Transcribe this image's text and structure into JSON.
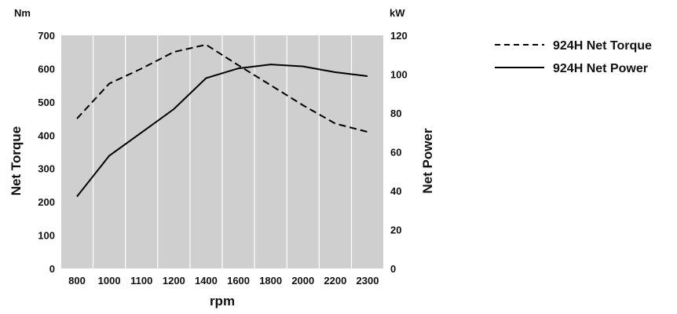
{
  "chart_data": {
    "type": "line",
    "x": [
      800,
      1000,
      1100,
      1200,
      1400,
      1600,
      1800,
      2000,
      2200,
      2300
    ],
    "x_tick_labels": [
      "800",
      "1000",
      "1100",
      "1200",
      "1400",
      "1600",
      "1800",
      "2000",
      "2200",
      "2300"
    ],
    "xlabel": "rpm",
    "y_left": {
      "label": "Net Torque",
      "unit": "Nm",
      "range": [
        0,
        700
      ],
      "ticks": [
        "0",
        "100",
        "200",
        "300",
        "400",
        "500",
        "600",
        "700"
      ]
    },
    "y_right": {
      "label": "Net Power",
      "unit": "kW",
      "range": [
        0,
        120
      ],
      "ticks": [
        "0",
        "20",
        "40",
        "60",
        "80",
        "100",
        "120"
      ]
    },
    "series": [
      {
        "name": "924H Net Torque",
        "axis": "left",
        "style": "dashed",
        "color": "#000000",
        "values": [
          450,
          555,
          600,
          650,
          672,
          610,
          550,
          490,
          435,
          410
        ]
      },
      {
        "name": "924H Net Power",
        "axis": "right",
        "style": "solid",
        "color": "#000000",
        "values": [
          37,
          58,
          70,
          82,
          98,
          103,
          105,
          104,
          101,
          99
        ]
      }
    ],
    "plot_background": "#cfcfcf",
    "grid": {
      "vertical": true,
      "horizontal": false,
      "color": "#ffffff"
    },
    "legend_position": "top-right"
  }
}
